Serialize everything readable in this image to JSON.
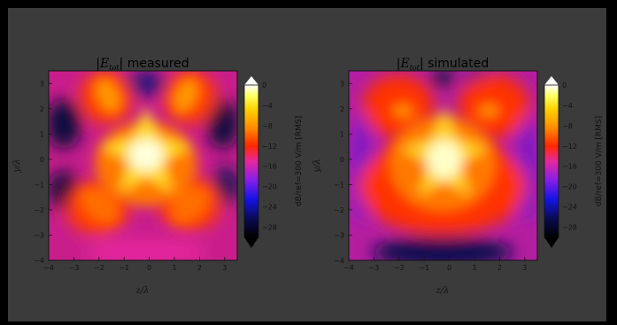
{
  "chart_data": [
    {
      "type": "heatmap",
      "title_math": "|E",
      "title_sub": "tot",
      "title_rest": "| measured",
      "xlabel": "z/λ",
      "ylabel": "y/λ",
      "xlim": [
        -4,
        3.5
      ],
      "ylim": [
        -4,
        3.5
      ],
      "xticks": [
        "−4",
        "−3",
        "−2",
        "−1",
        "0",
        "1",
        "2",
        "3"
      ],
      "yticks": [
        "−4",
        "−3",
        "−2",
        "−1",
        "0",
        "1",
        "2",
        "3"
      ],
      "colorbar": {
        "label": "dB/ref=300 V/m [RMS]",
        "range": [
          -30,
          0
        ],
        "ticks": [
          "0",
          "−4",
          "−8",
          "−12",
          "−16",
          "−20",
          "−24",
          "−28"
        ],
        "colormap": "gnuplot2-like (black-blue-purple-red-orange-yellow-white)"
      }
    },
    {
      "type": "heatmap",
      "title_math": "|E",
      "title_sub": "tot",
      "title_rest": "| simulated",
      "xlabel": "z/λ",
      "ylabel": "y/λ",
      "xlim": [
        -4,
        3.5
      ],
      "ylim": [
        -4,
        3.5
      ],
      "xticks": [
        "−4",
        "−3",
        "−2",
        "−1",
        "0",
        "1",
        "2",
        "3"
      ],
      "yticks": [
        "−4",
        "−3",
        "−2",
        "−1",
        "0",
        "1",
        "2",
        "3"
      ],
      "colorbar": {
        "label": "dB/ref=300 V/m [RMS]",
        "range": [
          -30,
          0
        ],
        "ticks": [
          "0",
          "−4",
          "−8",
          "−12",
          "−16",
          "−20",
          "−24",
          "−28"
        ],
        "colormap": "gnuplot2-like (black-blue-purple-red-orange-yellow-white)"
      }
    }
  ]
}
